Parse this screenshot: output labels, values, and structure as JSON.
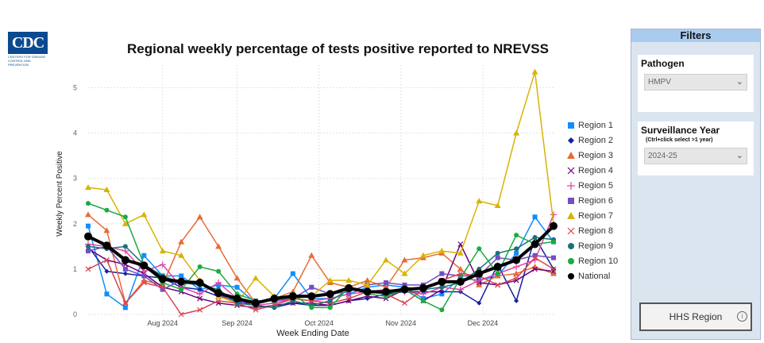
{
  "header": {
    "logo_text": "CDC",
    "logo_subtext": "CENTERS FOR DISEASE CONTROL AND PREVENTION",
    "title": "Regional weekly percentage of tests positive reported to NREVSS"
  },
  "chart_data": {
    "type": "line",
    "title": "Regional weekly percentage of tests positive reported to NREVSS",
    "xlabel": "Week Ending Date",
    "ylabel": "Weekly Percent Positive",
    "ylim": [
      0,
      5.5
    ],
    "yticks": [
      0,
      1,
      2,
      3,
      4,
      5
    ],
    "xticks": [
      {
        "label": "Aug 2024",
        "x": 4
      },
      {
        "label": "Sep 2024",
        "x": 8
      },
      {
        "label": "Oct 2024",
        "x": 12.4
      },
      {
        "label": "Nov 2024",
        "x": 16.8
      },
      {
        "label": "Dec 2024",
        "x": 21.2
      }
    ],
    "x": [
      0,
      1,
      2,
      3,
      4,
      5,
      6,
      7,
      8,
      9,
      10,
      11,
      12,
      13,
      14,
      15,
      16,
      17,
      18,
      19,
      20,
      21,
      22,
      23,
      24,
      25
    ],
    "grid": true,
    "legend_position": "right",
    "series": [
      {
        "name": "Region 1",
        "color": "#118dff",
        "marker": "square",
        "values": [
          1.95,
          0.45,
          0.15,
          1.3,
          0.85,
          0.85,
          0.55,
          0.65,
          0.6,
          0.25,
          0.35,
          0.9,
          0.35,
          0.35,
          0.45,
          0.6,
          0.65,
          0.6,
          0.35,
          0.45,
          0.8,
          0.75,
          0.85,
          1.35,
          2.15,
          1.6
        ]
      },
      {
        "name": "Region 2",
        "color": "#12239e",
        "marker": "diamond",
        "values": [
          1.5,
          0.95,
          0.9,
          0.85,
          0.8,
          0.6,
          0.55,
          0.4,
          0.3,
          0.2,
          0.15,
          0.25,
          0.2,
          0.2,
          0.3,
          0.35,
          0.45,
          0.5,
          0.5,
          0.5,
          0.5,
          0.25,
          1.1,
          0.3,
          1.7,
          1.0
        ]
      },
      {
        "name": "Region 3",
        "color": "#e66c37",
        "marker": "triangle",
        "values": [
          2.2,
          1.85,
          0.25,
          0.75,
          0.65,
          1.6,
          2.15,
          1.5,
          0.8,
          0.25,
          0.35,
          0.5,
          1.3,
          0.7,
          0.6,
          0.75,
          0.6,
          1.2,
          1.25,
          1.35,
          1.0,
          0.65,
          0.85,
          0.9,
          1.05,
          0.9
        ]
      },
      {
        "name": "Region 4",
        "color": "#6b007b",
        "marker": "x",
        "values": [
          1.45,
          1.2,
          1.1,
          0.9,
          0.6,
          0.5,
          0.35,
          0.25,
          0.2,
          0.15,
          0.2,
          0.25,
          0.25,
          0.2,
          0.3,
          0.4,
          0.35,
          0.55,
          0.3,
          0.55,
          1.55,
          0.7,
          0.65,
          0.75,
          1.0,
          0.95
        ]
      },
      {
        "name": "Region 5",
        "color": "#e044a7",
        "marker": "plus",
        "values": [
          1.55,
          1.5,
          1.4,
          0.95,
          1.1,
          0.6,
          0.45,
          0.7,
          0.35,
          0.2,
          0.25,
          0.35,
          0.3,
          0.35,
          0.45,
          0.5,
          0.55,
          0.5,
          0.45,
          0.6,
          0.55,
          0.75,
          0.9,
          1.05,
          1.2,
          2.2
        ]
      },
      {
        "name": "Region 6",
        "color": "#744ec2",
        "marker": "square",
        "values": [
          1.4,
          1.5,
          1.0,
          0.85,
          0.55,
          0.75,
          0.7,
          0.45,
          0.25,
          0.3,
          0.3,
          0.35,
          0.6,
          0.45,
          0.5,
          0.65,
          0.7,
          0.65,
          0.65,
          0.9,
          0.85,
          0.85,
          1.25,
          1.2,
          1.3,
          1.25
        ]
      },
      {
        "name": "Region 7",
        "color": "#d9b300",
        "marker": "triangle",
        "values": [
          2.8,
          2.75,
          2.0,
          2.2,
          1.4,
          1.3,
          0.75,
          0.4,
          0.25,
          0.8,
          0.4,
          0.35,
          0.4,
          0.75,
          0.75,
          0.65,
          1.2,
          0.9,
          1.3,
          1.4,
          1.35,
          2.5,
          2.4,
          4.0,
          5.35,
          2.0
        ]
      },
      {
        "name": "Region 8",
        "color": "#d64550",
        "marker": "x",
        "values": [
          1.0,
          1.2,
          0.25,
          0.7,
          0.6,
          0.0,
          0.1,
          0.3,
          0.25,
          0.1,
          0.2,
          0.35,
          0.3,
          0.25,
          0.35,
          0.5,
          0.45,
          0.25,
          0.55,
          0.75,
          0.9,
          0.85,
          0.65,
          0.8,
          1.25,
          1.0
        ]
      },
      {
        "name": "Region 9",
        "color": "#197278",
        "marker": "circle",
        "values": [
          1.5,
          1.45,
          1.5,
          1.1,
          0.85,
          0.7,
          0.65,
          0.55,
          0.25,
          0.2,
          0.15,
          0.3,
          0.2,
          0.3,
          0.55,
          0.5,
          0.45,
          0.6,
          0.55,
          0.6,
          0.7,
          1.0,
          1.35,
          1.45,
          1.7,
          1.65
        ]
      },
      {
        "name": "Region 10",
        "color": "#1aab40",
        "marker": "circle",
        "values": [
          2.45,
          2.3,
          2.15,
          1.1,
          0.7,
          0.55,
          1.05,
          0.95,
          0.45,
          0.3,
          0.3,
          0.45,
          0.15,
          0.15,
          0.6,
          0.45,
          0.4,
          0.55,
          0.3,
          0.1,
          0.8,
          1.45,
          0.9,
          1.75,
          1.55,
          1.6
        ]
      },
      {
        "name": "National",
        "color": "#000000",
        "marker": "circle",
        "values": [
          1.72,
          1.52,
          1.2,
          1.08,
          0.78,
          0.72,
          0.7,
          0.47,
          0.35,
          0.25,
          0.35,
          0.4,
          0.4,
          0.45,
          0.58,
          0.5,
          0.5,
          0.55,
          0.58,
          0.72,
          0.72,
          0.9,
          1.05,
          1.2,
          1.55,
          1.95
        ]
      }
    ]
  },
  "filters": {
    "title": "Filters",
    "pathogen": {
      "label": "Pathogen",
      "value": "HMPV"
    },
    "surveillance_year": {
      "label": "Surveillance Year",
      "sublabel": "(Ctrl+click select >1 year)",
      "value": "2024-25"
    },
    "hhs_button": {
      "label": "HHS Region",
      "info_icon": "i"
    }
  }
}
